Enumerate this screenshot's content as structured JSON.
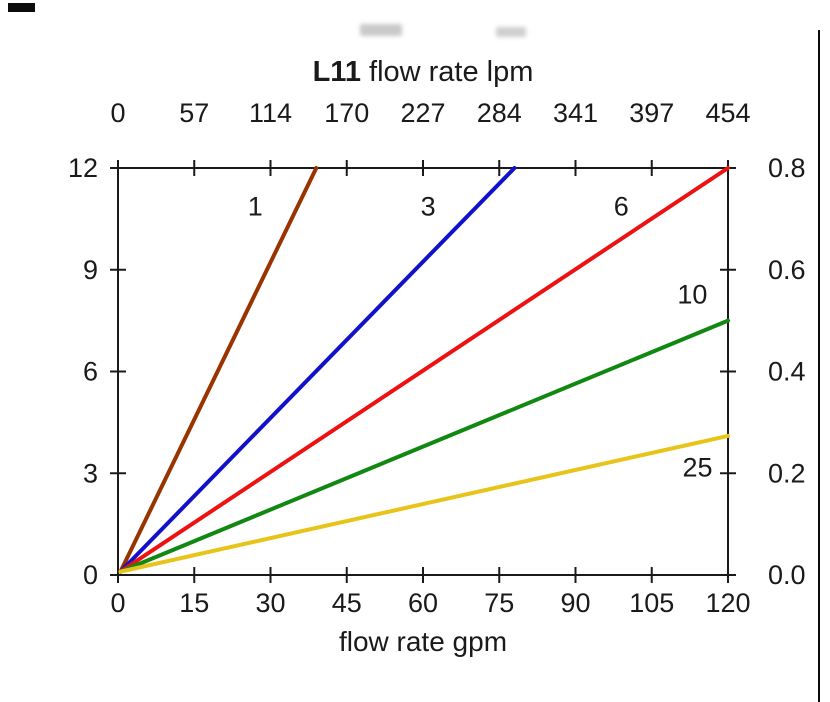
{
  "chart_data": {
    "type": "line",
    "title": "L11 flow rate lpm",
    "title_bold": "L11",
    "title_rest": " flow rate lpm",
    "xlabel_top": "flow rate lpm",
    "xlabel_bottom": "flow rate gpm",
    "xlim": [
      0,
      120
    ],
    "ylim": [
      0,
      12
    ],
    "right_ylim": [
      0.0,
      0.8
    ],
    "grid": false,
    "x_ticks_bottom": [
      0,
      15,
      30,
      45,
      60,
      75,
      90,
      105,
      120
    ],
    "x_ticks_top_labels": [
      "0",
      "57",
      "114",
      "170",
      "227",
      "284",
      "341",
      "397",
      "454"
    ],
    "y_ticks_left": [
      0,
      3,
      6,
      9,
      12
    ],
    "y_ticks_right_labels": [
      "0.0",
      "0.2",
      "0.4",
      "0.6",
      "0.8"
    ],
    "text_color": "#1a1a1a",
    "series": [
      {
        "name": "1",
        "color": "#993300",
        "points": [
          [
            0.5,
            0.1
          ],
          [
            39,
            12
          ]
        ],
        "label_pos": [
          27,
          10.6
        ]
      },
      {
        "name": "3",
        "color": "#1111cc",
        "points": [
          [
            0.5,
            0.1
          ],
          [
            78,
            12
          ]
        ],
        "label_pos": [
          61,
          10.6
        ]
      },
      {
        "name": "6",
        "color": "#ee1111",
        "points": [
          [
            0.5,
            0.1
          ],
          [
            120,
            12
          ]
        ],
        "label_pos": [
          99,
          10.6
        ]
      },
      {
        "name": "10",
        "color": "#118811",
        "points": [
          [
            0.5,
            0.1
          ],
          [
            120,
            7.5
          ]
        ],
        "label_pos": [
          113,
          8.0
        ]
      },
      {
        "name": "25",
        "color": "#e8c41a",
        "points": [
          [
            0.5,
            0.1
          ],
          [
            120,
            4.1
          ]
        ],
        "label_pos": [
          114,
          2.9
        ]
      }
    ]
  }
}
